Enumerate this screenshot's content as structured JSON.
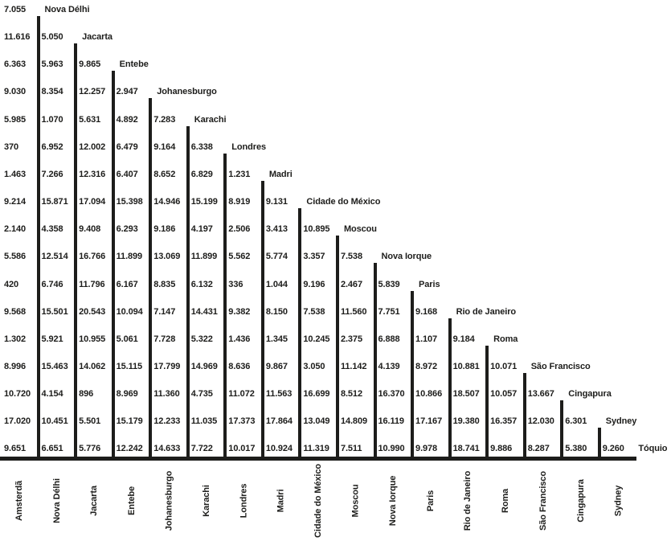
{
  "chart_data": {
    "type": "table",
    "subtype": "triangular-distance-matrix-staircase",
    "title": "",
    "legend": "none",
    "grid": "off",
    "text_color": "#1d1d1b",
    "background_color": "#ffffff",
    "bottom_labels": [
      "Amsterdã",
      "Nova Délhi",
      "Jacarta",
      "Entebe",
      "Johanesburgo",
      "Karachi",
      "Londres",
      "Madri",
      "Cidade do México",
      "Moscou",
      "Nova Iorque",
      "Paris",
      "Rio de Janeiro",
      "Roma",
      "São Francisco",
      "Cingapura",
      "Sydney"
    ],
    "rows": [
      {
        "label": "Nova Délhi",
        "values": [
          "7.055"
        ]
      },
      {
        "label": "Jacarta",
        "values": [
          "11.616",
          "5.050"
        ]
      },
      {
        "label": "Entebe",
        "values": [
          "6.363",
          "5.963",
          "9.865"
        ]
      },
      {
        "label": "Johanesburgo",
        "values": [
          "9.030",
          "8.354",
          "12.257",
          "2.947"
        ]
      },
      {
        "label": "Karachi",
        "values": [
          "5.985",
          "1.070",
          "5.631",
          "4.892",
          "7.283"
        ]
      },
      {
        "label": "Londres",
        "values": [
          "370",
          "6.952",
          "12.002",
          "6.479",
          "9.164",
          "6.338"
        ]
      },
      {
        "label": "Madri",
        "values": [
          "1.463",
          "7.266",
          "12.316",
          "6.407",
          "8.652",
          "6.829",
          "1.231"
        ]
      },
      {
        "label": "Cidade do México",
        "values": [
          "9.214",
          "15.871",
          "17.094",
          "15.398",
          "14.946",
          "15.199",
          "8.919",
          "9.131"
        ]
      },
      {
        "label": "Moscou",
        "values": [
          "2.140",
          "4.358",
          "9.408",
          "6.293",
          "9.186",
          "4.197",
          "2.506",
          "3.413",
          "10.895"
        ]
      },
      {
        "label": "Nova Iorque",
        "values": [
          "5.586",
          "12.514",
          "16.766",
          "11.899",
          "13.069",
          "11.899",
          "5.562",
          "5.774",
          "3.357",
          "7.538"
        ]
      },
      {
        "label": "Paris",
        "values": [
          "420",
          "6.746",
          "11.796",
          "6.167",
          "8.835",
          "6.132",
          "336",
          "1.044",
          "9.196",
          "2.467",
          "5.839"
        ]
      },
      {
        "label": "Rio de Janeiro",
        "values": [
          "9.568",
          "15.501",
          "20.543",
          "10.094",
          "7.147",
          "14.431",
          "9.382",
          "8.150",
          "7.538",
          "11.560",
          "7.751",
          "9.168"
        ]
      },
      {
        "label": "Roma",
        "values": [
          "1.302",
          "5.921",
          "10.955",
          "5.061",
          "7.728",
          "5.322",
          "1.436",
          "1.345",
          "10.245",
          "2.375",
          "6.888",
          "1.107",
          "9.184"
        ]
      },
      {
        "label": "São Francisco",
        "values": [
          "8.996",
          "15.463",
          "14.062",
          "15.115",
          "17.799",
          "14.969",
          "8.636",
          "9.867",
          "3.050",
          "11.142",
          "4.139",
          "8.972",
          "10.881",
          "10.071"
        ]
      },
      {
        "label": "Cingapura",
        "values": [
          "10.720",
          "4.154",
          "896",
          "8.969",
          "11.360",
          "4.735",
          "11.072",
          "11.563",
          "16.699",
          "8.512",
          "16.370",
          "10.866",
          "18.507",
          "10.057",
          "13.667"
        ]
      },
      {
        "label": "Sydney",
        "values": [
          "17.020",
          "10.451",
          "5.501",
          "15.179",
          "12.233",
          "11.035",
          "17.373",
          "17.864",
          "13.049",
          "14.809",
          "16.119",
          "17.167",
          "19.380",
          "16.357",
          "12.030",
          "6.301"
        ]
      },
      {
        "label": "Tóquio",
        "values": [
          "9.651",
          "6.651",
          "5.776",
          "12.242",
          "14.633",
          "7.722",
          "10.017",
          "10.924",
          "11.319",
          "7.511",
          "10.990",
          "9.978",
          "18.741",
          "9.886",
          "8.287",
          "5.380",
          "9.260"
        ]
      }
    ]
  }
}
